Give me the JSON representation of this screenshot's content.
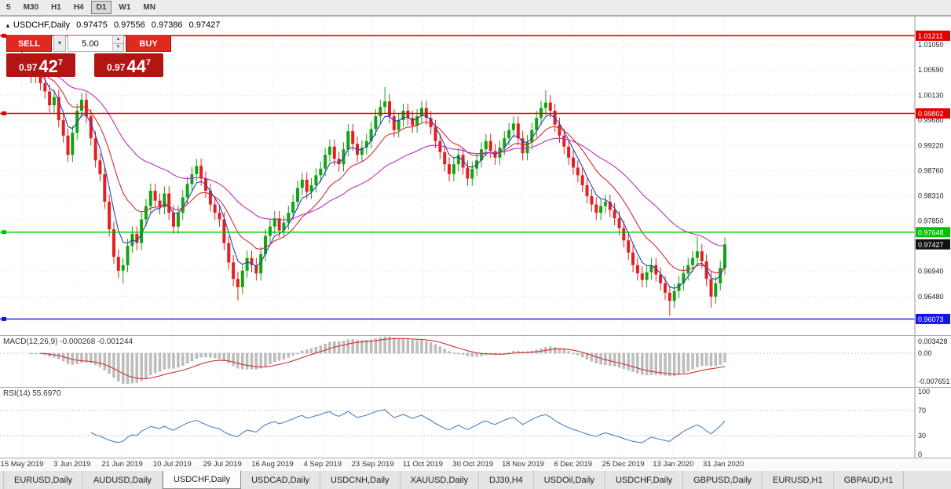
{
  "toolbar": {
    "timeframes": [
      "5",
      "M30",
      "H1",
      "H4",
      "D1",
      "W1",
      "MN"
    ],
    "active_index": 4
  },
  "chart_header": {
    "marker": "▲",
    "symbol": "USDCHF,Daily",
    "open": "0.97475",
    "high": "0.97556",
    "low": "0.97386",
    "close": "0.97427"
  },
  "trade_panel": {
    "sell_label": "SELL",
    "buy_label": "BUY",
    "volume": "5.00",
    "dropdown_icon": "▼",
    "spin_up": "▲",
    "spin_down": "▼",
    "bid": {
      "prefix": "0.97",
      "big": "42",
      "sup": "7"
    },
    "ask": {
      "prefix": "0.97",
      "big": "44",
      "sup": "7"
    }
  },
  "macd_panel": {
    "title": "MACD(12,26,9)",
    "value_main": "-0.000268",
    "value_signal": "-0.001244",
    "axis_top": "0.003428",
    "axis_zero": "0.00",
    "axis_bottom": "-0.007651"
  },
  "rsi_panel": {
    "title": "RSI(14)",
    "value": "55.6970",
    "axis": [
      "100",
      "70",
      "30",
      "0"
    ]
  },
  "tabs": {
    "active_index": 2,
    "items": [
      "EURUSD,Daily",
      "AUDUSD,Daily",
      "USDCHF,Daily",
      "USDCAD,Daily",
      "USDCNH,Daily",
      "XAUUSD,Daily",
      "DJ30,H4",
      "USDOil,Daily",
      "USDCHF,Daily",
      "GBPUSD,Daily",
      "EURUSD,H1",
      "GBPAUD,H1"
    ]
  },
  "chart_data": {
    "type": "candlestick",
    "title": "USDCHF,Daily",
    "x_labels": [
      "15 May 2019",
      "3 Jun 2019",
      "21 Jun 2019",
      "10 Jul 2019",
      "29 Jul 2019",
      "16 Aug 2019",
      "4 Sep 2019",
      "23 Sep 2019",
      "11 Oct 2019",
      "30 Oct 2019",
      "18 Nov 2019",
      "6 Dec 2019",
      "25 Dec 2019",
      "13 Jan 2020",
      "31 Jan 2020"
    ],
    "price_range": [
      0.9578,
      1.0156
    ],
    "price_axis_ticks": [
      1.0105,
      1.0059,
      1.0013,
      0.9968,
      0.9922,
      0.9876,
      0.9831,
      0.9785,
      0.9694,
      0.9648
    ],
    "levels": [
      {
        "price": 1.01211,
        "label": "1.01211",
        "color": "#e00000"
      },
      {
        "price": 0.99802,
        "label": "0.99802",
        "color": "#e00000"
      },
      {
        "price": 0.97648,
        "label": "0.97648",
        "color": "#00c400"
      },
      {
        "price": 0.96073,
        "label": "0.96073",
        "color": "#1414e8"
      }
    ],
    "current_price": {
      "price": 0.97427,
      "label": "0.97427",
      "color": "#111111"
    },
    "up_color": "#12a412",
    "down_color": "#e32020",
    "first_open": 1.0068,
    "default_wick": 0.0013,
    "wick_overrides": {
      "0": {
        "high": 1.0094
      },
      "22": {
        "low": 0.9672
      },
      "47": {
        "low": 0.9641
      },
      "79": {
        "high": 1.0028
      },
      "114": {
        "high": 1.0022
      },
      "141": {
        "low": 0.9613
      },
      "147": {
        "high": 0.9757
      },
      "150": {
        "low": 0.9628
      }
    },
    "closes": [
      1.006,
      1.0072,
      1.0048,
      1.0066,
      1.0035,
      1.002,
      0.9995,
      1.001,
      0.9968,
      0.994,
      0.9905,
      0.9945,
      0.9985,
      1.0005,
      0.9975,
      0.9935,
      0.9895,
      0.987,
      0.982,
      0.977,
      0.972,
      0.9695,
      0.9705,
      0.974,
      0.9762,
      0.9745,
      0.9788,
      0.9812,
      0.984,
      0.9822,
      0.981,
      0.9835,
      0.98,
      0.9775,
      0.98,
      0.9828,
      0.9852,
      0.987,
      0.9885,
      0.9862,
      0.984,
      0.9815,
      0.98,
      0.9788,
      0.9745,
      0.971,
      0.968,
      0.9665,
      0.9695,
      0.9718,
      0.9705,
      0.969,
      0.9725,
      0.9758,
      0.9775,
      0.979,
      0.9768,
      0.9782,
      0.98,
      0.982,
      0.9845,
      0.986,
      0.9838,
      0.985,
      0.9868,
      0.988,
      0.9905,
      0.992,
      0.9898,
      0.9888,
      0.9915,
      0.9948,
      0.9925,
      0.9905,
      0.9918,
      0.993,
      0.9952,
      0.9975,
      0.9992,
      1.0002,
      0.9975,
      0.995,
      0.9968,
      0.9985,
      0.9972,
      0.9958,
      0.9975,
      0.999,
      0.9972,
      0.9955,
      0.993,
      0.991,
      0.9888,
      0.987,
      0.9888,
      0.9905,
      0.9882,
      0.9862,
      0.988,
      0.9895,
      0.9915,
      0.993,
      0.9912,
      0.99,
      0.9918,
      0.9935,
      0.995,
      0.9962,
      0.9935,
      0.9908,
      0.9928,
      0.995,
      0.9972,
      0.999,
      1.0,
      0.9985,
      0.996,
      0.994,
      0.992,
      0.99,
      0.9882,
      0.9868,
      0.985,
      0.983,
      0.9815,
      0.98,
      0.9812,
      0.982,
      0.9805,
      0.979,
      0.9772,
      0.975,
      0.9728,
      0.9705,
      0.969,
      0.9678,
      0.9692,
      0.9705,
      0.9688,
      0.9672,
      0.9655,
      0.964,
      0.9658,
      0.9672,
      0.969,
      0.9705,
      0.9718,
      0.973,
      0.9712,
      0.968,
      0.9648,
      0.9672,
      0.97,
      0.97427
    ],
    "moving_averages": [
      {
        "period": 5,
        "color": "#2c3ec0"
      },
      {
        "period": 13,
        "color": "#d02c3c"
      },
      {
        "period": 34,
        "color": "#c02cc0"
      }
    ],
    "macd": {
      "fast": 12,
      "slow": 26,
      "signal_period": 9,
      "range": [
        -0.0082,
        0.004
      ],
      "hist_color": "#bfbfbf",
      "signal_color": "#cc3333"
    },
    "rsi": {
      "period": 14,
      "levels": [
        70,
        30
      ],
      "range": [
        0,
        100
      ],
      "color": "#4e80c0"
    }
  }
}
